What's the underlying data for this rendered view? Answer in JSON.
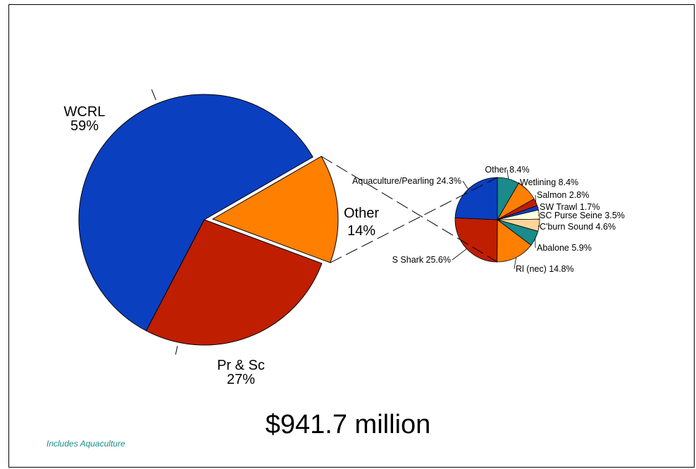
{
  "chart_data": [
    {
      "type": "pie",
      "slices": [
        {
          "label": "WCRL",
          "pct_label": "59%",
          "value": 59,
          "color": "#0a3fbf"
        },
        {
          "label": "Pr & Sc",
          "pct_label": "27%",
          "value": 27,
          "color": "#bf1e00"
        },
        {
          "label": "Other",
          "pct_label": "14%",
          "value": 14,
          "color": "#ff7f00",
          "exploded": true
        }
      ]
    },
    {
      "type": "pie",
      "slices": [
        {
          "label": "Other",
          "value": 8.4,
          "text": "Other  8.4%",
          "color": "#1a8a8a"
        },
        {
          "label": "Wetlining",
          "value": 8.4,
          "text": "Wetlining  8.4%",
          "color": "#ff7f00"
        },
        {
          "label": "Salmon",
          "value": 2.8,
          "text": "Salmon  2.8%",
          "color": "#bf1e00"
        },
        {
          "label": "SW Trawl",
          "value": 1.7,
          "text": "SW Trawl  1.7%",
          "color": "#0a3fbf"
        },
        {
          "label": "SC Purse Seine",
          "value": 3.5,
          "text": "SC Purse Seine  3.5%",
          "color": "#ffffe0"
        },
        {
          "label": "C'burn Sound",
          "value": 4.6,
          "text": "C'burn Sound  4.6%",
          "color": "#ffd49a"
        },
        {
          "label": "Abalone",
          "value": 5.9,
          "text": "Abalone  5.9%",
          "color": "#1a8a8a"
        },
        {
          "label": "Rl (nec)",
          "value": 14.8,
          "text": "Rl (nec)  14.8%",
          "color": "#ff7f00"
        },
        {
          "label": "S Shark",
          "value": 25.6,
          "text": "S Shark  25.6%",
          "color": "#bf1e00"
        },
        {
          "label": "Aquaculture/Pearling",
          "value": 24.3,
          "text": "Aquaculture/Pearling  24.3%",
          "color": "#0a3fbf"
        }
      ]
    }
  ],
  "total_text": "$941.7 million",
  "footnote": "Includes Aquaculture"
}
